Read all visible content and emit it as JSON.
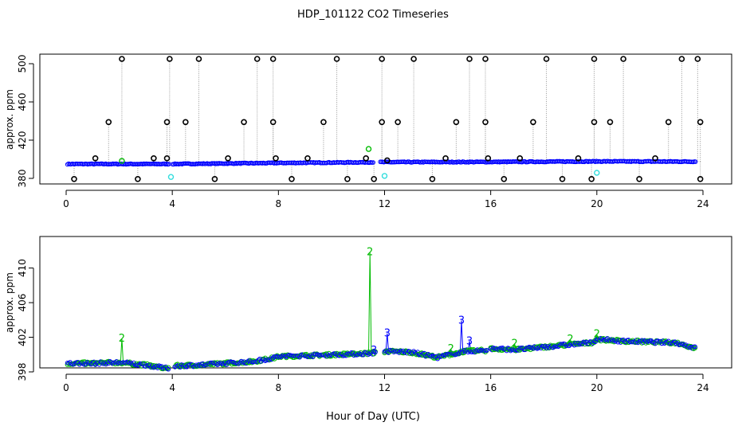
{
  "figure": {
    "title": "HDP_101122  CO2 Timeseries",
    "xlabel": "Hour of Day (UTC)"
  },
  "colors": {
    "blue": "#0000ff",
    "green": "#00bb00",
    "cyan": "#33dddd",
    "black": "#000000",
    "grey": "#999999"
  },
  "chart_data": [
    {
      "type": "scatter",
      "title": "",
      "xlabel": "",
      "ylabel": "approx. ppm",
      "xlim": [
        0,
        24
      ],
      "ylim": [
        380,
        505
      ],
      "xticks": [
        0,
        4,
        8,
        12,
        16,
        20,
        24
      ],
      "yticks": [
        380,
        420,
        460,
        500
      ],
      "grid": false,
      "legend": "none",
      "baseline": {
        "x": [
          0,
          4,
          8,
          12,
          16,
          20,
          23.8
        ],
        "y": [
          398.5,
          398.5,
          399.5,
          400.3,
          400.5,
          401.0,
          400.8
        ]
      },
      "baseline_gaps": [
        [
          3.9,
          4.0
        ],
        [
          11.6,
          11.8
        ]
      ],
      "outliers_high": [
        2.1,
        3.9,
        5.0,
        7.2,
        7.8,
        10.2,
        11.9,
        13.1,
        15.2,
        15.8,
        18.1,
        19.9,
        21.0,
        23.2,
        23.8
      ],
      "outliers_mid": [
        1.6,
        3.8,
        4.5,
        6.7,
        7.8,
        9.7,
        11.9,
        12.5,
        14.7,
        15.8,
        17.6,
        19.9,
        20.5,
        22.7,
        23.9
      ],
      "outliers_low": [
        0.3,
        1.1,
        2.7,
        3.3,
        3.8,
        5.6,
        6.1,
        7.9,
        8.5,
        9.1,
        10.6,
        11.3,
        11.6,
        12.1,
        13.8,
        14.3,
        15.9,
        16.5,
        17.1,
        18.7,
        19.3,
        19.8,
        21.6,
        22.2,
        23.9
      ],
      "outliers_low_values": [
        384,
        404,
        384,
        404,
        404,
        384,
        404,
        404,
        384,
        404,
        384,
        404,
        384,
        402,
        384,
        404,
        404,
        384,
        404,
        384,
        404,
        384,
        384,
        404,
        384
      ],
      "green_points": [
        {
          "x": 2.1,
          "y": 401.5
        },
        {
          "x": 11.4,
          "y": 413
        }
      ],
      "cyan_points": [
        {
          "x": 3.95,
          "y": 386
        },
        {
          "x": 12.0,
          "y": 387
        },
        {
          "x": 20.0,
          "y": 390
        }
      ]
    },
    {
      "type": "scatter",
      "title": "",
      "xlabel": "",
      "ylabel": "approx. ppm",
      "xlim": [
        0,
        24
      ],
      "ylim": [
        398,
        413
      ],
      "xticks": [
        0,
        4,
        8,
        12,
        16,
        20,
        24
      ],
      "yticks": [
        398,
        402,
        406,
        410
      ],
      "grid": false,
      "legend": "none",
      "trend": {
        "x": [
          0,
          1,
          2,
          3,
          3.8,
          4.1,
          5,
          6,
          7,
          7.8,
          8,
          9,
          10,
          11,
          11.5,
          12.1,
          13,
          14,
          15,
          15.8,
          16,
          17,
          18,
          19,
          19.8,
          20,
          21,
          22,
          23,
          23.8
        ],
        "y": [
          399.0,
          399.0,
          399.1,
          398.8,
          398.4,
          398.7,
          398.8,
          399.0,
          399.2,
          399.6,
          399.8,
          399.9,
          400.0,
          400.1,
          400.2,
          400.4,
          400.3,
          399.7,
          400.4,
          400.5,
          400.7,
          400.6,
          400.9,
          401.2,
          401.4,
          401.8,
          401.6,
          401.5,
          401.4,
          400.7
        ]
      },
      "gaps": [
        [
          3.85,
          4.05
        ],
        [
          11.7,
          12.0
        ],
        [
          15.9,
          16.0
        ]
      ],
      "spikes_green": [
        {
          "x": 2.1,
          "y": 401.9
        },
        {
          "x": 11.45,
          "y": 412.0
        },
        {
          "x": 14.5,
          "y": 400.7
        },
        {
          "x": 16.9,
          "y": 401.3
        },
        {
          "x": 19.0,
          "y": 401.8
        },
        {
          "x": 20.0,
          "y": 402.4
        }
      ],
      "spikes_blue": [
        {
          "x": 12.1,
          "y": 402.5
        },
        {
          "x": 14.9,
          "y": 404.0
        },
        {
          "x": 15.2,
          "y": 401.6
        },
        {
          "x": 11.6,
          "y": 400.5
        }
      ],
      "point_label": "2",
      "point_label_alt": "3"
    }
  ]
}
